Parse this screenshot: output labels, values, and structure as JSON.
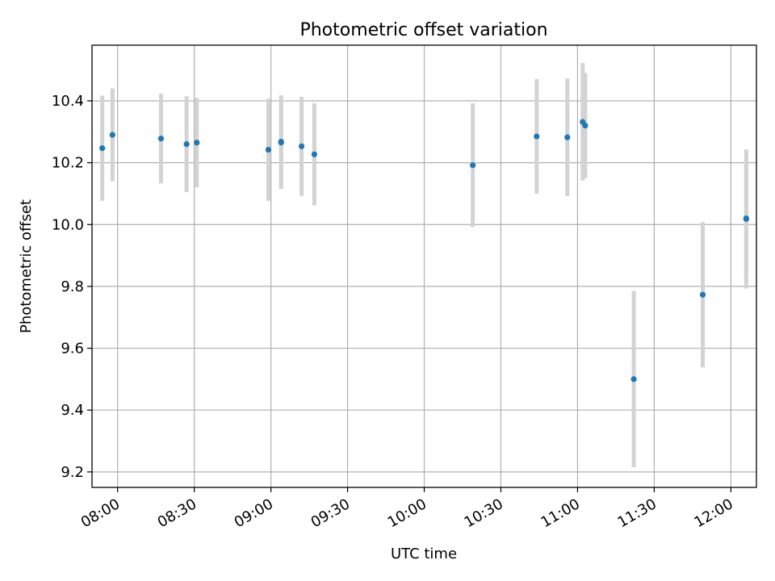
{
  "chart_data": {
    "type": "scatter",
    "title": "Photometric offset variation",
    "xlabel": "UTC time",
    "ylabel": "Photometric offset",
    "grid": true,
    "legend": "none",
    "xlim": [
      "07:50",
      "12:10"
    ],
    "ylim": [
      9.15,
      10.58
    ],
    "x_ticks": [
      "08:00",
      "08:30",
      "09:00",
      "09:30",
      "10:00",
      "10:30",
      "11:00",
      "11:30",
      "12:00"
    ],
    "y_ticks": [
      "9.2",
      "9.4",
      "9.6",
      "9.8",
      "10.0",
      "10.2",
      "10.4"
    ],
    "colors": {
      "points": "#1f77b4",
      "error_bars": "#d3d3d3"
    },
    "series": [
      {
        "points": [
          {
            "x": "07:54",
            "y": 10.247,
            "yerr": 0.17
          },
          {
            "x": "07:58",
            "y": 10.29,
            "yerr": 0.15
          },
          {
            "x": "08:17",
            "y": 10.278,
            "yerr": 0.145
          },
          {
            "x": "08:27",
            "y": 10.26,
            "yerr": 0.155
          },
          {
            "x": "08:31",
            "y": 10.265,
            "yerr": 0.145
          },
          {
            "x": "08:59",
            "y": 10.242,
            "yerr": 0.165
          },
          {
            "x": "09:04",
            "y": 10.265,
            "yerr": 0.15
          },
          {
            "x": "09:04",
            "y": 10.268,
            "yerr": 0.15
          },
          {
            "x": "09:12",
            "y": 10.253,
            "yerr": 0.16
          },
          {
            "x": "09:17",
            "y": 10.227,
            "yerr": 0.165
          },
          {
            "x": "10:19",
            "y": 10.192,
            "yerr": 0.2
          },
          {
            "x": "10:44",
            "y": 10.285,
            "yerr": 0.185
          },
          {
            "x": "10:56",
            "y": 10.282,
            "yerr": 0.19
          },
          {
            "x": "11:02",
            "y": 10.332,
            "yerr": 0.19
          },
          {
            "x": "11:03",
            "y": 10.32,
            "yerr": 0.17
          },
          {
            "x": "11:22",
            "y": 9.5,
            "yerr": 0.285
          },
          {
            "x": "11:49",
            "y": 9.773,
            "yerr": 0.235
          },
          {
            "x": "12:06",
            "y": 10.018,
            "yerr": 0.225
          },
          {
            "x": "12:06",
            "y": 10.02,
            "yerr": 0.19
          }
        ]
      }
    ]
  }
}
